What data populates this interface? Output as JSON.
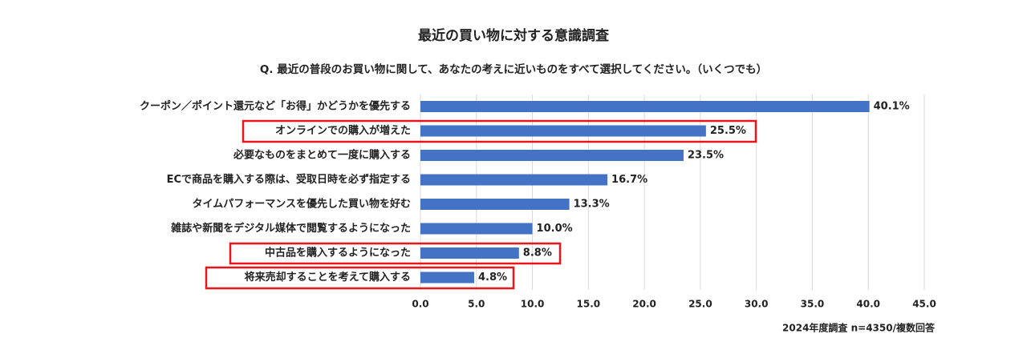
{
  "chart_data": {
    "type": "bar",
    "orientation": "horizontal",
    "title": "最近の買い物に対する意識調査",
    "subtitle": "Q. 最近の普段のお買い物に関して、あなたの考えに近いものをすべて選択してください。（いくつでも）",
    "categories": [
      "クーポン／ポイント還元など「お得」かどうかを優先する",
      "オンラインでの購入が増えた",
      "必要なものをまとめて一度に購入する",
      "ECで商品を購入する際は、受取日時を必ず指定する",
      "タイムパフォーマンスを優先した買い物を好む",
      "雑誌や新聞をデジタル媒体で閲覧するようになった",
      "中古品を購入するようになった",
      "将来売却することを考えて購入する"
    ],
    "values": [
      40.1,
      25.5,
      23.5,
      16.7,
      13.3,
      10.0,
      8.8,
      4.8
    ],
    "value_labels": [
      "40.1%",
      "25.5%",
      "23.5%",
      "16.7%",
      "13.3%",
      "10.0%",
      "8.8%",
      "4.8%"
    ],
    "color": "#4472c4",
    "xlim": [
      0,
      45
    ],
    "xticks": [
      {
        "value": 0,
        "label": "0.0"
      },
      {
        "value": 5,
        "label": "5.0"
      },
      {
        "value": 10,
        "label": "10.0"
      },
      {
        "value": 15,
        "label": "15.0"
      },
      {
        "value": 20,
        "label": "20.0"
      },
      {
        "value": 25,
        "label": "25.0"
      },
      {
        "value": 30,
        "label": "30.0"
      },
      {
        "value": 35,
        "label": "35.0"
      },
      {
        "value": 40,
        "label": "40.0"
      },
      {
        "value": 45,
        "label": "45.0"
      }
    ],
    "grid": true,
    "note": "2024年度調査 n=4350/複数回答"
  }
}
